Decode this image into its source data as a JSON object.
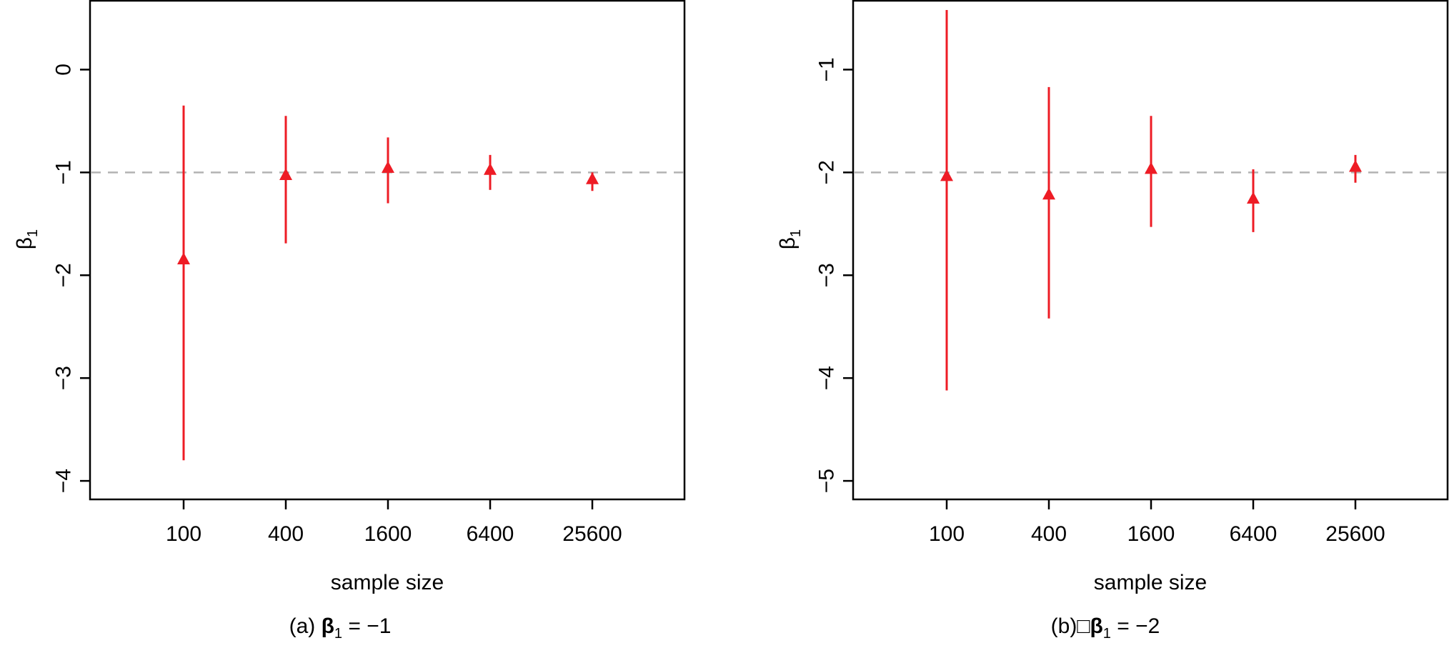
{
  "chart_data": [
    {
      "type": "scatter",
      "panel_label": "(a)",
      "caption_prefix": "(a) ",
      "caption_beta": "β",
      "caption_sub": "1",
      "caption_suffix": " = −1",
      "xlabel": "sample size",
      "ylabel_main": "β",
      "ylabel_sub": "1",
      "categories": [
        "100",
        "400",
        "1600",
        "6400",
        "25600"
      ],
      "estimate": [
        -1.85,
        -1.03,
        -0.96,
        -0.98,
        -1.07
      ],
      "lower": [
        -3.8,
        -1.69,
        -1.3,
        -1.17,
        -1.18
      ],
      "upper": [
        -0.35,
        -0.45,
        -0.66,
        -0.83,
        -1.0
      ],
      "reference_y": -1,
      "ylim": [
        -4.18,
        0.67
      ],
      "yticks": [
        0,
        -1,
        -2,
        -3,
        -4
      ],
      "ytick_labels": [
        "0",
        "−1",
        "−2",
        "−3",
        "−4"
      ],
      "marker": "triangle",
      "color": "#ee1c25",
      "reference_color": "#b3b3b3",
      "grid": false,
      "legend": "none"
    },
    {
      "type": "scatter",
      "panel_label": "(b)",
      "caption_prefix": "(b)□",
      "caption_beta": "β",
      "caption_sub": "1",
      "caption_suffix": " = −2",
      "xlabel": "sample size",
      "ylabel_main": "β",
      "ylabel_sub": "1",
      "categories": [
        "100",
        "400",
        "1600",
        "6400",
        "25600"
      ],
      "estimate": [
        -2.04,
        -2.22,
        -1.97,
        -2.26,
        -1.95
      ],
      "lower": [
        -4.12,
        -3.42,
        -2.53,
        -2.58,
        -2.1
      ],
      "upper": [
        -0.42,
        -1.17,
        -1.45,
        -1.97,
        -1.83
      ],
      "reference_y": -2,
      "ylim": [
        -5.18,
        -0.33
      ],
      "yticks": [
        -1,
        -2,
        -3,
        -4,
        -5
      ],
      "ytick_labels": [
        "−1",
        "−2",
        "−3",
        "−4",
        "−5"
      ],
      "marker": "triangle",
      "color": "#ee1c25",
      "reference_color": "#b3b3b3",
      "grid": false,
      "legend": "none"
    }
  ]
}
